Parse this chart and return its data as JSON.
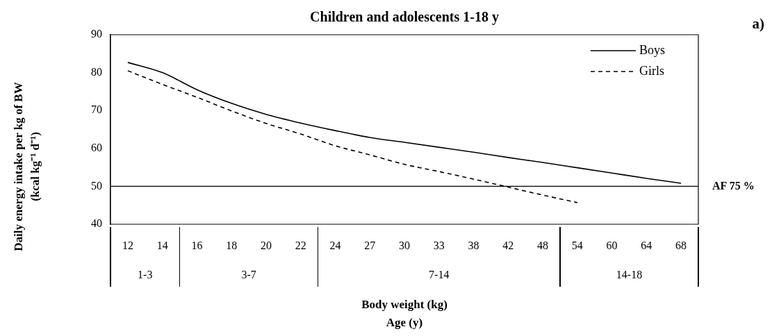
{
  "chart_data": {
    "type": "line",
    "title": "Children and adolescents 1-18 y",
    "xlabel": "Body weight (kg)\nAge (y)",
    "ylabel": "Daily energy intake per kg of BW\n(kcal kg⁻¹ d⁻¹)",
    "categories": [
      "12",
      "14",
      "16",
      "18",
      "20",
      "22",
      "24",
      "27",
      "30",
      "33",
      "38",
      "42",
      "48",
      "54",
      "60",
      "64",
      "68"
    ],
    "series": [
      {
        "name": "Boys",
        "color": "#000000",
        "line_style": "solid",
        "values": [
          82.7,
          80,
          75.5,
          71.9,
          69,
          66.7,
          64.7,
          62.9,
          61.6,
          60.3,
          59,
          57.6,
          56.3,
          54.9,
          53.5,
          52.1,
          50.8
        ]
      },
      {
        "name": "Girls",
        "color": "#000000",
        "line_style": "dashed",
        "values": [
          80.5,
          76.9,
          73.5,
          69.9,
          66.6,
          63.8,
          60.7,
          58.3,
          55.8,
          53.9,
          51.9,
          49.8,
          47.7,
          45.7,
          null,
          null,
          null
        ]
      }
    ],
    "ylim": [
      40,
      90
    ],
    "yticks": [
      40,
      50,
      60,
      70,
      80,
      90
    ],
    "grid": false,
    "legend": "top right",
    "marker": "none",
    "ref_lines": [
      {
        "axis": "y",
        "value": 50,
        "label": "AF 75 %",
        "color": "#000000"
      }
    ],
    "annotations": [
      "1-3",
      "3-7",
      "7-14",
      "14-18",
      "a)"
    ]
  }
}
